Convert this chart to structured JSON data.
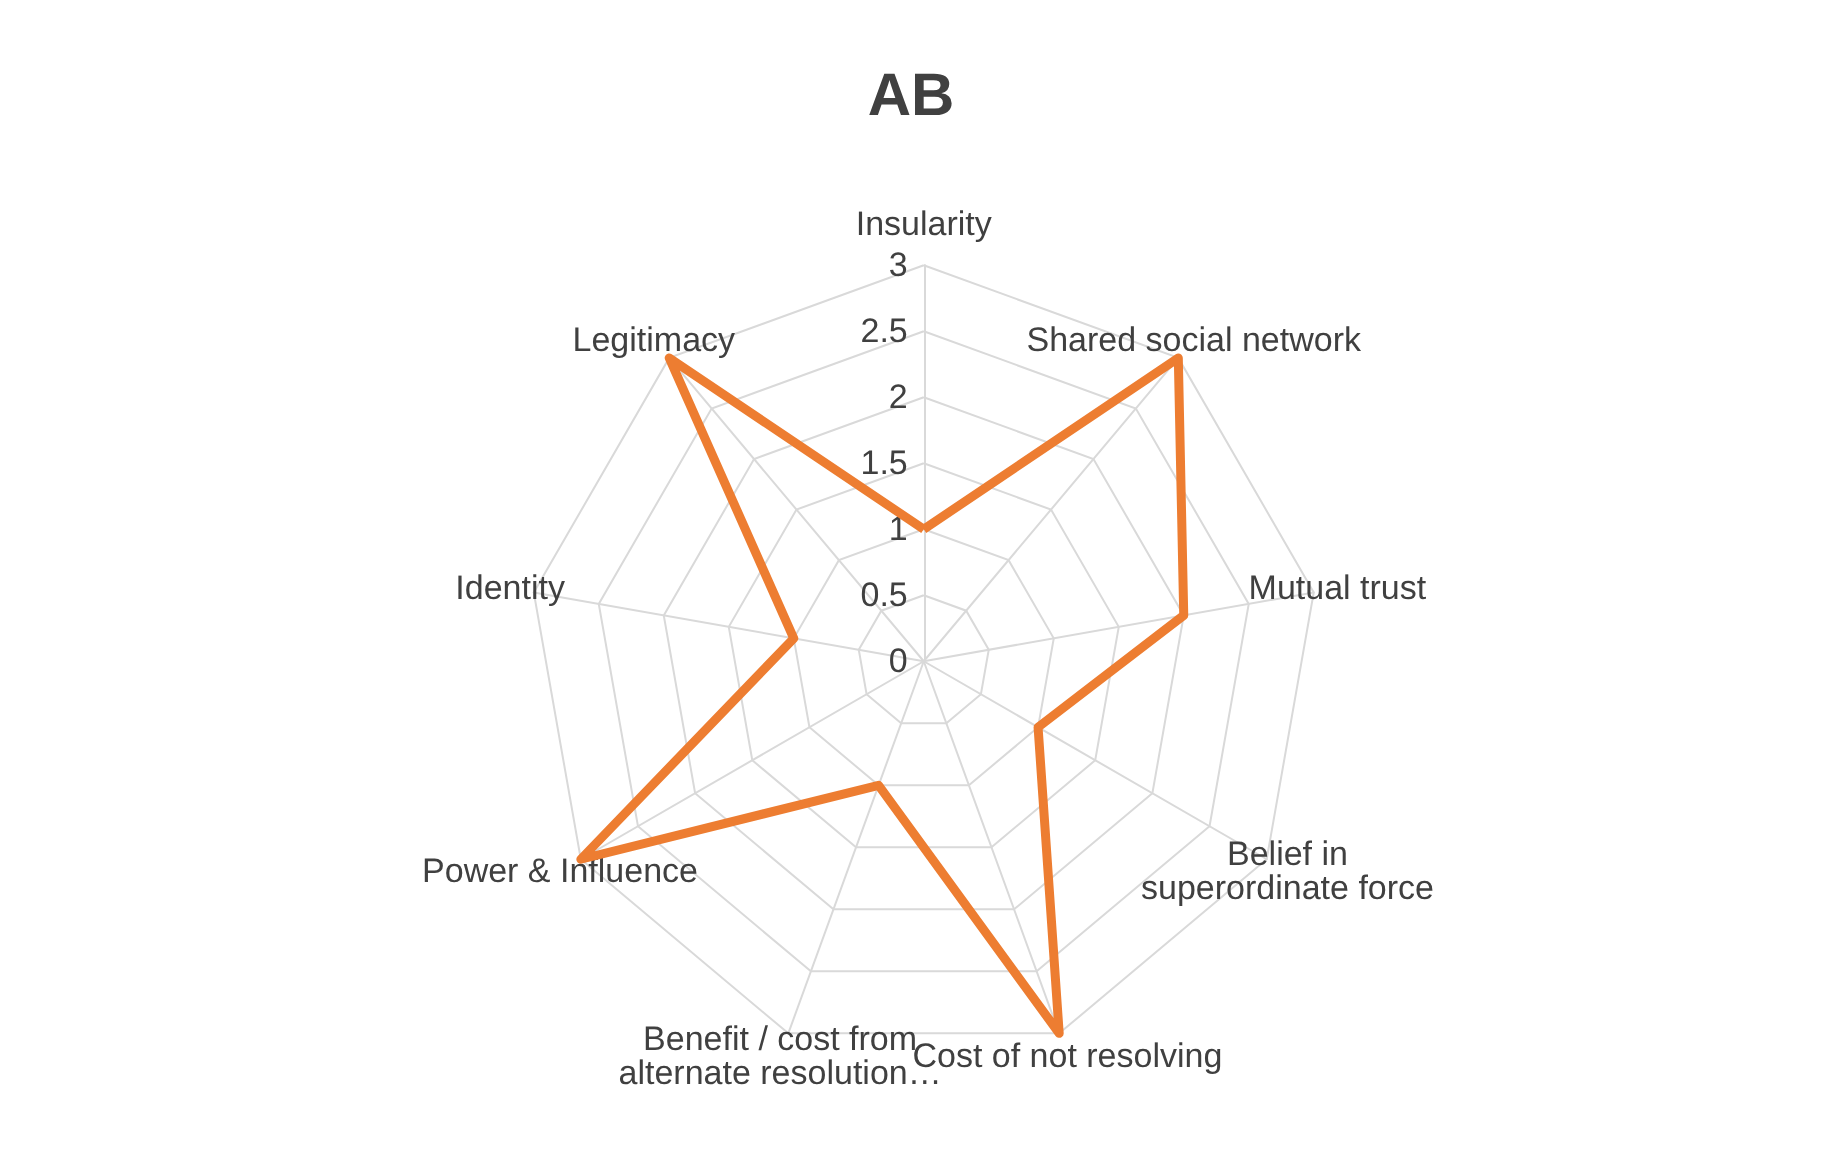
{
  "chart_data": {
    "type": "radar",
    "title": "AB",
    "categories": [
      "Insularity",
      "Shared social network",
      "Mutual trust",
      "Belief in superordinate force",
      "Cost of not resolving",
      "Benefit / cost from alternate resolution…",
      "Power & Influence",
      "Identity",
      "Legitimacy"
    ],
    "series": [
      {
        "color": "#ed7d31",
        "values": [
          1,
          3,
          2,
          1,
          3,
          1,
          3,
          1,
          3
        ]
      }
    ],
    "ylim": [
      0,
      3
    ],
    "yticks": [
      0,
      0.5,
      1,
      1.5,
      2,
      2.5,
      3
    ],
    "marker": "none",
    "line_style": "solid",
    "grid": true
  }
}
